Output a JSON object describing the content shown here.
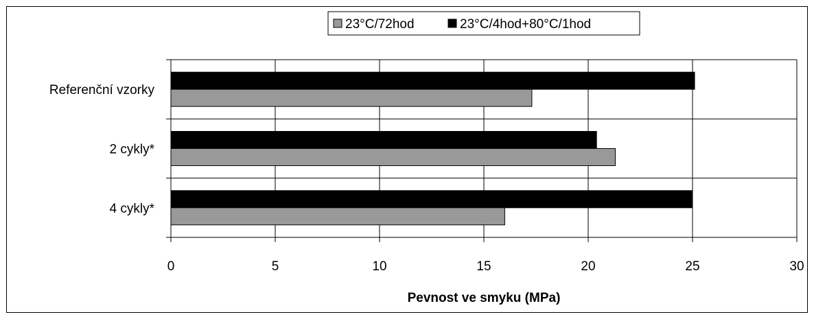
{
  "chart_data": {
    "type": "bar",
    "orientation": "horizontal",
    "categories": [
      "Referenční vzorky",
      "2 cykly*",
      "4 cykly*"
    ],
    "series": [
      {
        "name": "23°C/72hod",
        "color": "#999999",
        "values": [
          17.3,
          21.3,
          16.0
        ]
      },
      {
        "name": "23°C/4hod+80°C/1hod",
        "color": "#000000",
        "values": [
          25.1,
          20.4,
          25.0
        ]
      }
    ],
    "xlabel": "Pevnost ve smyku (MPa)",
    "ylabel": "",
    "xlim": [
      0,
      30
    ],
    "xticks": [
      0,
      5,
      10,
      15,
      20,
      25,
      30
    ],
    "grid": true,
    "legend": "top-center"
  }
}
